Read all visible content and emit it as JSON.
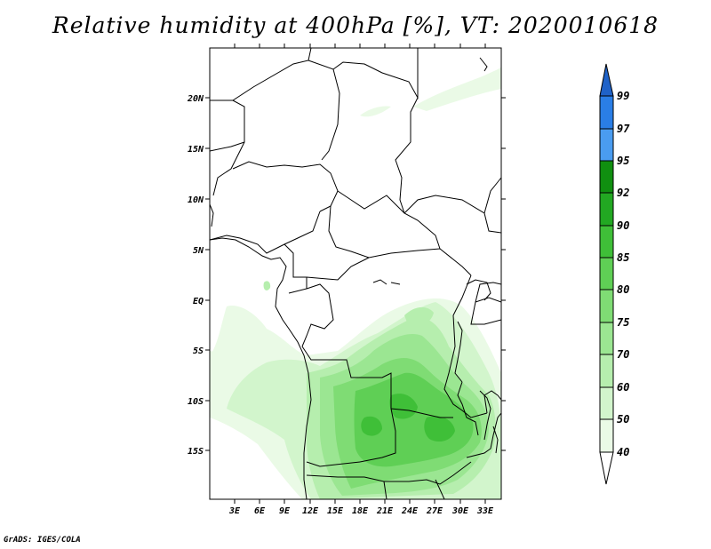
{
  "title": "Relative humidity at 400hPa [%], VT: 2020010618",
  "credit": "GrADS: IGES/COLA",
  "map": {
    "lat_labels": [
      "20N",
      "15N",
      "10N",
      "5N",
      "EQ",
      "5S",
      "10S",
      "15S"
    ],
    "lon_labels": [
      "3E",
      "6E",
      "9E",
      "12E",
      "15E",
      "18E",
      "21E",
      "24E",
      "27E",
      "30E",
      "33E"
    ]
  },
  "colorbar": {
    "levels": [
      "40",
      "50",
      "60",
      "70",
      "75",
      "80",
      "85",
      "90",
      "92",
      "95",
      "97",
      "99"
    ],
    "colors": [
      "#ffffff",
      "#eafae6",
      "#d2f5cc",
      "#b6eeae",
      "#9be692",
      "#7fdc74",
      "#5fcf55",
      "#3fbf38",
      "#22a822",
      "#108f10",
      "#4a9cf0",
      "#2a7ee6",
      "#1f62c8"
    ]
  }
}
